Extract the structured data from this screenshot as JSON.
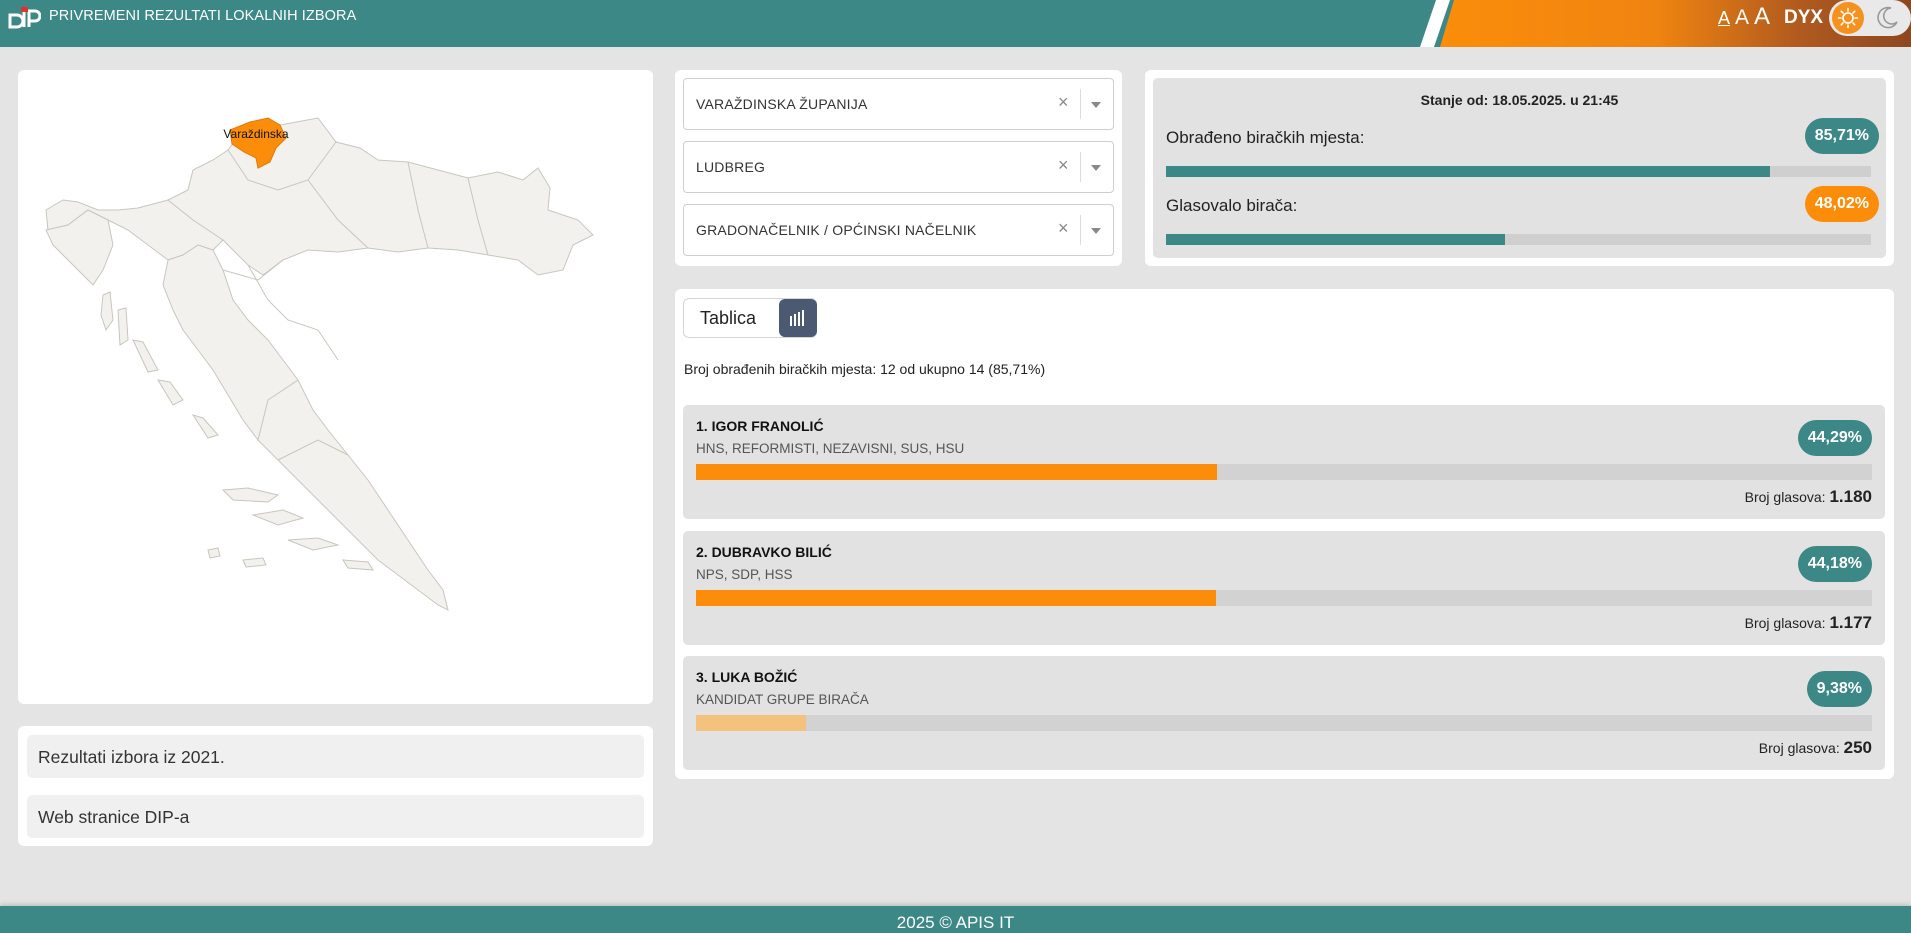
{
  "header": {
    "title": "PRIVREMENI REZULTATI LOKALNIH IZBORA",
    "font_small": "A",
    "font_medium": "A",
    "font_large": "A",
    "dyslexia_label": "DYX",
    "theme": "light"
  },
  "map": {
    "highlighted_region": "Varaždinska",
    "highlight_color": "#fb8d0b"
  },
  "links": [
    {
      "label": "Rezultati izbora iz 2021."
    },
    {
      "label": "Web stranice DIP-a"
    }
  ],
  "filters": {
    "county": "VARAŽDINSKA ŽUPANIJA",
    "municipality": "LUDBREG",
    "election_type": "GRADONAČELNIK / OPĆINSKI NAČELNIK",
    "clear_symbol": "×"
  },
  "stats": {
    "as_of": "Stanje od: 18.05.2025. u 21:45",
    "processed_label": "Obrađeno biračkih mjesta:",
    "processed_value": "85,71%",
    "processed_fraction": 0.8571,
    "turnout_label": "Glasovalo birača:",
    "turnout_value": "48,02%",
    "turnout_fraction": 0.4802
  },
  "results": {
    "view_table_label": "Tablica",
    "processed_line": "Broj obrađenih biračkih mjesta: 12 od ukupno 14 (85,71%)",
    "votes_label": "Broj glasova:",
    "candidates": [
      {
        "name": "1. IGOR FRANOLIĆ",
        "parties": "HNS, REFORMISTI, NEZAVISNI, SUS, HSU",
        "percent": "44,29%",
        "fraction": 0.4429,
        "votes": "1.180"
      },
      {
        "name": "2. DUBRAVKO BILIĆ",
        "parties": "NPS, SDP, HSS",
        "percent": "44,18%",
        "fraction": 0.4418,
        "votes": "1.177"
      },
      {
        "name": "3. LUKA BOŽIĆ",
        "parties": "KANDIDAT GRUPE BIRAČA",
        "percent": "9,38%",
        "fraction": 0.0938,
        "votes": "250"
      }
    ]
  },
  "footer": {
    "text": "2025 © APIS IT"
  },
  "colors": {
    "teal": "#3b8886",
    "orange": "#fb8d0b",
    "slate": "#4b5a72"
  }
}
